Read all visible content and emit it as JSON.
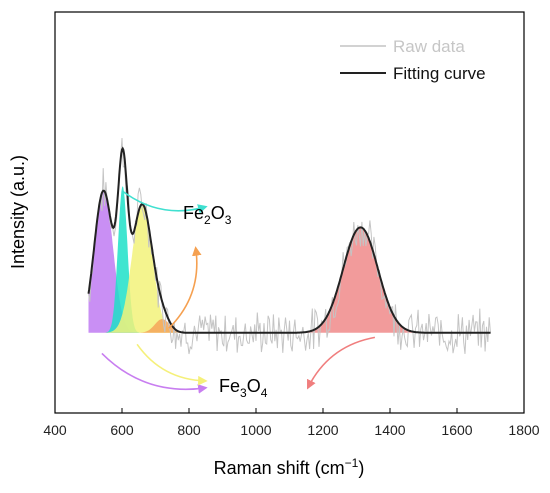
{
  "chart_data": {
    "type": "line",
    "xlabel": "Raman shift (cm",
    "xlabel_sup": "−1",
    "xlabel_end": ")",
    "ylabel": "Intensity (a.u.)",
    "xlim": [
      400,
      1800
    ],
    "ylim": [
      -0.35,
      1.4
    ],
    "x_ticks": [
      400,
      600,
      800,
      1000,
      1200,
      1400,
      1600,
      1800
    ],
    "x_tick_labels": [
      "400",
      "600",
      "800",
      "1000",
      "1200",
      "1400",
      "1600",
      "1800"
    ],
    "y_ticks_shown": false,
    "legend": {
      "position": "top-right",
      "entries": [
        {
          "label": "Raw data",
          "color": "#c8c8c8"
        },
        {
          "label": "Fitting curve",
          "color": "#222222"
        }
      ]
    },
    "fit_range": [
      500,
      1700
    ],
    "peaks": [
      {
        "center": 545,
        "amplitude": 0.62,
        "width": 28,
        "color": "#bf7bf2",
        "phase": "Fe3O4"
      },
      {
        "center": 602,
        "amplitude": 0.64,
        "width": 14,
        "color": "#1de0c8",
        "phase": "Fe2O3"
      },
      {
        "center": 660,
        "amplitude": 0.56,
        "width": 30,
        "color": "#f2f27a",
        "phase": "Fe3O4"
      },
      {
        "center": 720,
        "amplitude": 0.06,
        "width": 22,
        "color": "#f5a55a",
        "phase": "Fe2O3"
      },
      {
        "center": 1312,
        "amplitude": 0.46,
        "width": 52,
        "color": "#f08a8a",
        "phase": "Fe3O4"
      }
    ],
    "annotations": [
      {
        "text_main": "Fe",
        "sub1": "2",
        "mid": "O",
        "sub2": "3",
        "x": 860,
        "y": 0.45
      },
      {
        "text_main": "Fe",
        "sub1": "3",
        "mid": "O",
        "sub2": "4",
        "x": 860,
        "y": -0.24
      }
    ],
    "arrows": [
      {
        "from": [
          600,
          0.62
        ],
        "to": [
          850,
          0.55
        ],
        "color": "#40e0d0"
      },
      {
        "from": [
          740,
          0.02
        ],
        "to": [
          820,
          0.37
        ],
        "color": "#f5a050"
      },
      {
        "from": [
          540,
          -0.09
        ],
        "to": [
          850,
          -0.24
        ],
        "color": "#c87ef0"
      },
      {
        "from": [
          645,
          -0.05
        ],
        "to": [
          850,
          -0.21
        ],
        "color": "#f5f07a"
      },
      {
        "from": [
          1355,
          -0.02
        ],
        "to": [
          1155,
          -0.24
        ],
        "color": "#f07e7e"
      }
    ]
  }
}
